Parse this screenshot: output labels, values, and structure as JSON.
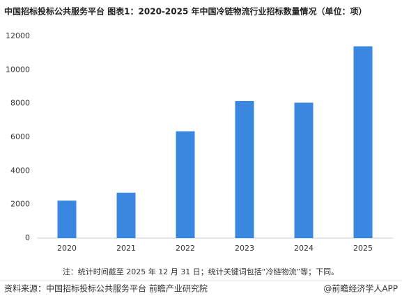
{
  "chart_data": {
    "type": "bar",
    "title": "中国招标投标公共服务平台  图表1：2020-2025 年中国冷链物流行业招标数量情况（单位：项）",
    "categories": [
      "2020",
      "2021",
      "2022",
      "2023",
      "2024",
      "2025"
    ],
    "values": [
      2230,
      2700,
      6350,
      8150,
      8050,
      11400
    ],
    "color": "#3a87e0",
    "ylim": [
      0,
      12000
    ],
    "yticks": [
      0,
      2000,
      4000,
      6000,
      8000,
      10000,
      12000
    ],
    "grid": false,
    "note": "注：统计时间截至 2025 年 12 月 31 日；统计关键词包括“冷链物流”等；下同。",
    "source": "资料来源：中国招标投标公共服务平台 前瞻产业研究院",
    "credit": "@前瞻经济学人APP"
  }
}
